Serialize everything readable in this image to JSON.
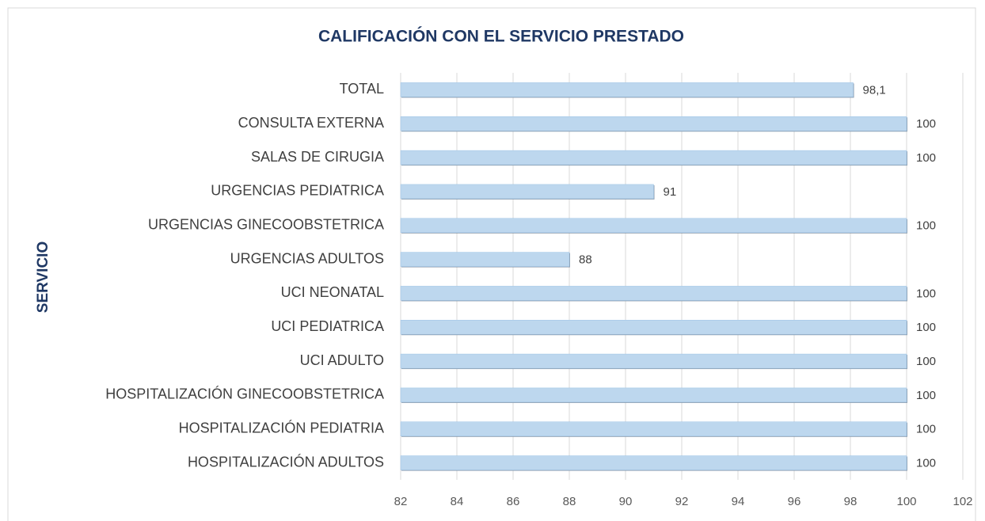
{
  "chart_data": {
    "type": "barh",
    "title": "CALIFICACIÓN CON EL SERVICIO PRESTADO",
    "ylabel": "SERVICIO",
    "categories": [
      "TOTAL",
      "CONSULTA EXTERNA",
      "SALAS DE CIRUGIA",
      "URGENCIAS PEDIATRICA",
      "URGENCIAS GINECOOBSTETRICA",
      "URGENCIAS ADULTOS",
      "UCI NEONATAL",
      "UCI PEDIATRICA",
      "UCI ADULTO",
      "HOSPITALIZACIÓN GINECOOBSTETRICA",
      "HOSPITALIZACIÓN PEDIATRIA",
      "HOSPITALIZACIÓN ADULTOS"
    ],
    "values": [
      98.1,
      100,
      100,
      91,
      100,
      88,
      100,
      100,
      100,
      100,
      100,
      100
    ],
    "value_labels": [
      "98,1",
      "100",
      "100",
      "91",
      "100",
      "88",
      "100",
      "100",
      "100",
      "100",
      "100",
      "100"
    ],
    "color": "#bdd7ee",
    "xlim": [
      82,
      102
    ],
    "xticks": [
      82,
      84,
      86,
      88,
      90,
      92,
      94,
      96,
      98,
      100,
      102
    ],
    "grid": true
  }
}
